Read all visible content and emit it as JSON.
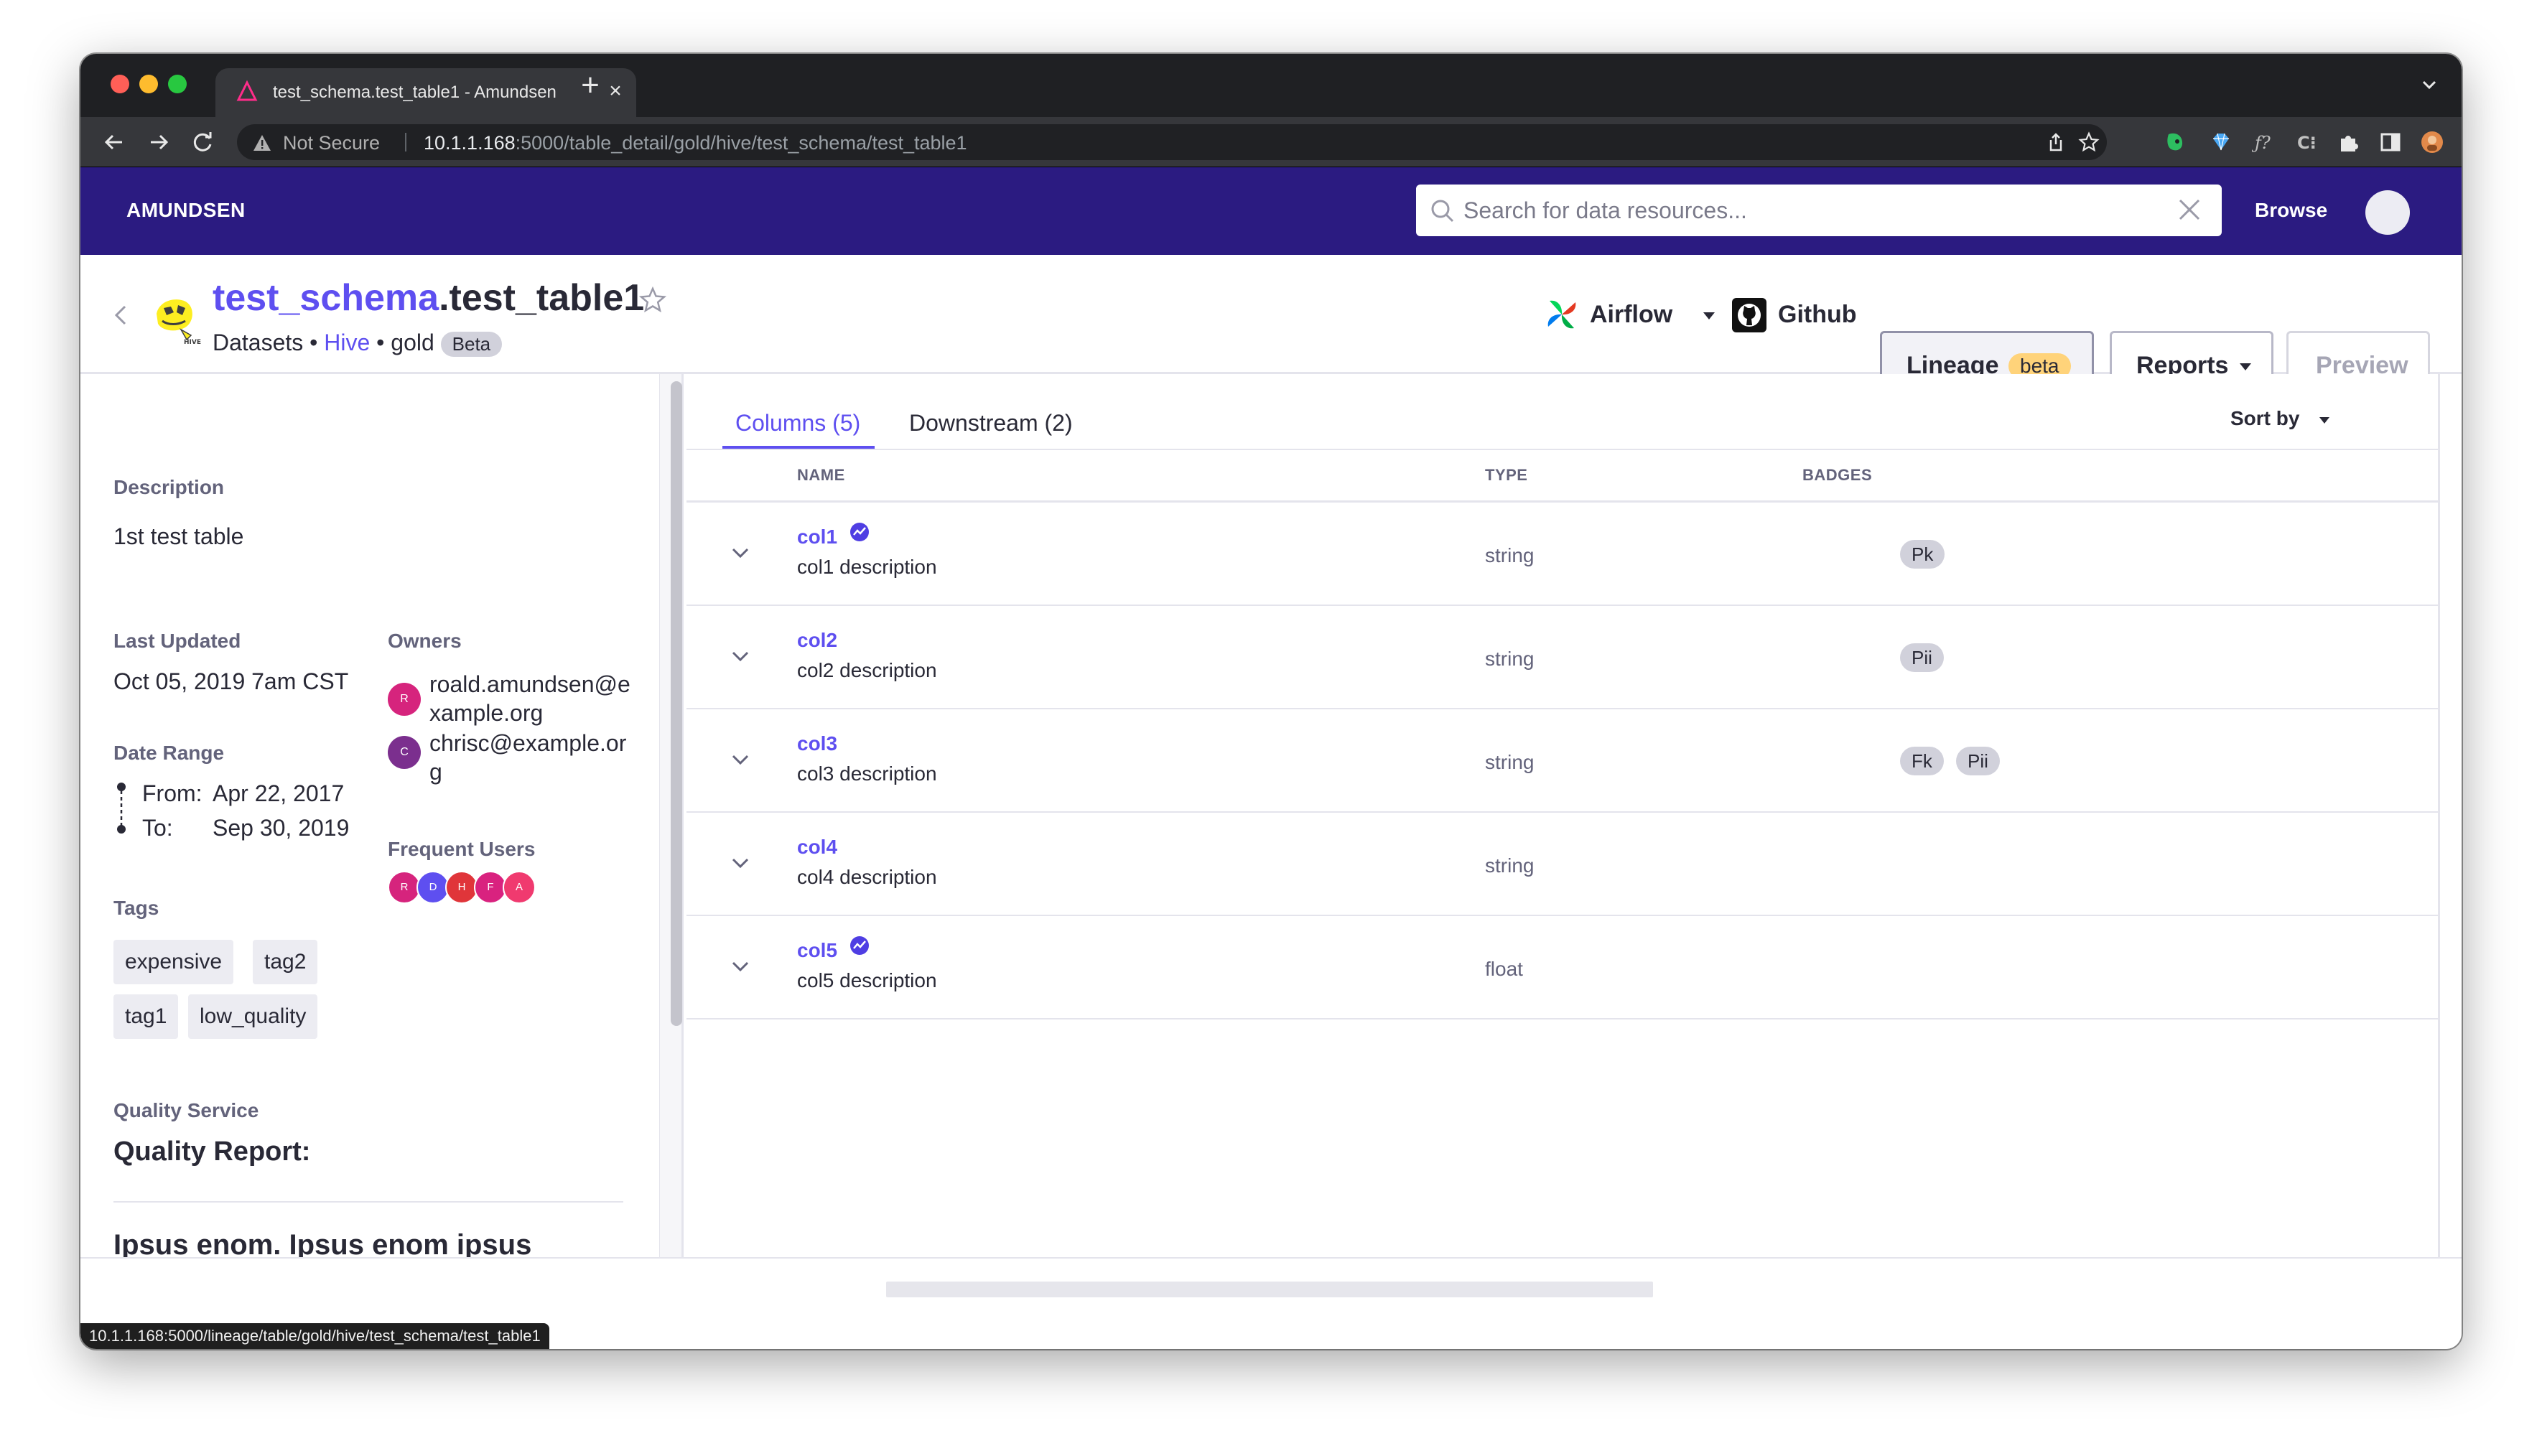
{
  "browser": {
    "tab_title": "test_schema.test_table1 - Amundsen",
    "not_secure": "Not Secure",
    "url_host": "10.1.1.168",
    "url_rest": ":5000/table_detail/gold/hive/test_schema/test_table1",
    "status_url": "10.1.1.168:5000/lineage/table/gold/hive/test_schema/test_table1"
  },
  "nav": {
    "brand": "AMUNDSEN",
    "search_placeholder": "Search for data resources...",
    "browse": "Browse"
  },
  "header": {
    "schema": "test_schema",
    "table": ".test_table1",
    "datasets": "Datasets",
    "bullet": "•",
    "database": "Hive",
    "cluster": "gold",
    "badge": "Beta",
    "airflow": "Airflow",
    "github": "Github",
    "lineage": "Lineage",
    "lineage_badge": "beta",
    "reports": "Reports",
    "preview": "Preview"
  },
  "left": {
    "description_label": "Description",
    "description": "1st test table",
    "last_updated_label": "Last Updated",
    "last_updated": "Oct 05, 2019 7am CST",
    "date_range_label": "Date Range",
    "from_label": "From:",
    "from": "Apr 22, 2017",
    "to_label": "To:",
    "to": "Sep 30, 2019",
    "owners_label": "Owners",
    "owners": [
      {
        "initial": "R",
        "email": "roald.amundsen@example.org",
        "color": "#d6247d"
      },
      {
        "initial": "C",
        "email": "chrisc@example.org",
        "color": "#7b2f8e"
      }
    ],
    "frequent_users_label": "Frequent Users",
    "frequent_users": [
      {
        "initial": "R",
        "color": "#d6247d"
      },
      {
        "initial": "D",
        "color": "#5e4ff0"
      },
      {
        "initial": "H",
        "color": "#e0353a"
      },
      {
        "initial": "F",
        "color": "#d9227f"
      },
      {
        "initial": "A",
        "color": "#f03a6f"
      }
    ],
    "tags_label": "Tags",
    "tags": [
      "expensive",
      "tag2",
      "tag1",
      "low_quality"
    ],
    "quality_service_label": "Quality Service",
    "quality_report_title": "Quality Report:",
    "quality_report_body": "Ipsus enom. Ipsus enom ipsus lorenum."
  },
  "right": {
    "tab_columns": "Columns (5)",
    "tab_downstream": "Downstream (2)",
    "sort_by": "Sort by",
    "headers": {
      "name": "NAME",
      "type": "TYPE",
      "badges": "BADGES"
    },
    "columns": [
      {
        "name": "col1",
        "description": "col1 description",
        "type": "string",
        "badges": [
          "Pk"
        ],
        "lineage": true
      },
      {
        "name": "col2",
        "description": "col2 description",
        "type": "string",
        "badges": [
          "Pii"
        ],
        "lineage": false
      },
      {
        "name": "col3",
        "description": "col3 description",
        "type": "string",
        "badges": [
          "Fk",
          "Pii"
        ],
        "lineage": false
      },
      {
        "name": "col4",
        "description": "col4 description",
        "type": "string",
        "badges": [],
        "lineage": false
      },
      {
        "name": "col5",
        "description": "col5 description",
        "type": "float",
        "badges": [],
        "lineage": true
      }
    ]
  },
  "colors": {
    "nav_bg": "#2b1b81",
    "accent": "#5e4ff0",
    "beta_badge": "#ffd37a"
  }
}
